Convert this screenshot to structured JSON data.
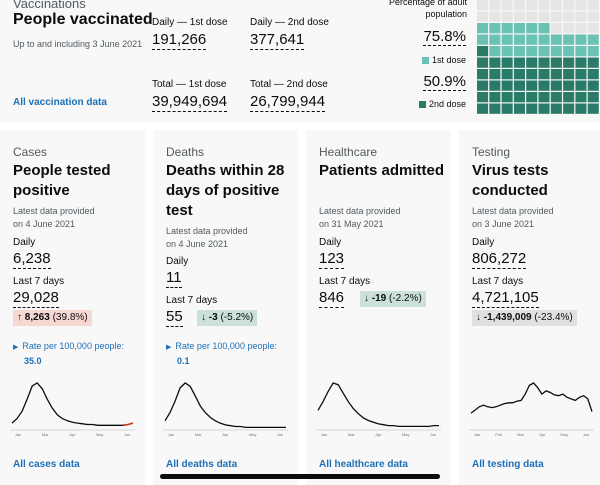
{
  "vaccinations": {
    "category": "Vaccinations",
    "title": "People vaccinated",
    "date": "Up to and including 3 June 2021",
    "daily_first_label": "Daily — 1st dose",
    "daily_first_value": "191,266",
    "daily_second_label": "Daily — 2nd dose",
    "daily_second_value": "377,641",
    "total_first_label": "Total — 1st dose",
    "total_first_value": "39,949,694",
    "total_second_label": "Total — 2nd dose",
    "total_second_value": "26,799,944",
    "link": "All vaccination data",
    "percentage_title": "Percentage of adult population",
    "first_dose_pct": "75.8%",
    "first_dose_legend": "1st dose",
    "second_dose_pct": "50.9%",
    "second_dose_legend": "2nd dose",
    "first_dose_fraction": 0.758,
    "second_dose_fraction": 0.509,
    "colors": {
      "first": "#6ac2b5",
      "second": "#2a7a68",
      "empty": "#e5e5e5"
    }
  },
  "cards": [
    {
      "category": "Cases",
      "title": "People tested positive",
      "provided_label": "Latest data provided",
      "provided_date": "on 4 June 2021",
      "daily_label": "Daily",
      "daily_value": "6,238",
      "week_label": "Last 7 days",
      "week_value": "29,028",
      "change_arrow": "↑",
      "change_value": "8,263",
      "change_pct": "(39.8%)",
      "rate_label": "Rate per 100,000 people:",
      "rate_value": "35.0",
      "link": "All cases data"
    },
    {
      "category": "Deaths",
      "title": "Deaths within 28 days of positive test",
      "provided_label": "Latest data provided",
      "provided_date": "on 4 June 2021",
      "daily_label": "Daily",
      "daily_value": "11",
      "week_label": "Last 7 days",
      "week_value": "55",
      "change_arrow": "↓",
      "change_value": "-3",
      "change_pct": "(-5.2%)",
      "rate_label": "Rate per 100,000 people:",
      "rate_value": "0.1",
      "link": "All deaths data"
    },
    {
      "category": "Healthcare",
      "title": "Patients admitted",
      "provided_label": "Latest data provided",
      "provided_date": "on 31 May 2021",
      "daily_label": "Daily",
      "daily_value": "123",
      "week_label": "Last 7 days",
      "week_value": "846",
      "change_arrow": "↓",
      "change_value": "-19",
      "change_pct": "(-2.2%)",
      "link": "All healthcare data"
    },
    {
      "category": "Testing",
      "title": "Virus tests conducted",
      "provided_label": "Latest data provided",
      "provided_date": "on 3 June 2021",
      "daily_label": "Daily",
      "daily_value": "806,272",
      "week_label": "Last 7 days",
      "week_value": "4,721,105",
      "change_arrow": "↓",
      "change_value": "-1,439,009",
      "change_pct": "(-23.4%)",
      "link": "All testing data"
    }
  ],
  "spark_axis": {
    "short": [
      "Jan",
      "Mar",
      "Apr",
      "May",
      "Jun"
    ],
    "testing": [
      "Jan",
      "Feb",
      "Mar",
      "Apr",
      "May",
      "Jun"
    ]
  },
  "sparklines": {
    "cases": [
      8,
      14,
      24,
      40,
      58,
      62,
      54,
      40,
      28,
      19,
      14,
      11,
      9,
      8,
      7,
      6,
      6,
      5,
      5,
      5,
      5,
      5,
      5,
      6,
      8
    ],
    "deaths": [
      10,
      20,
      34,
      50,
      56,
      52,
      40,
      28,
      20,
      14,
      10,
      7,
      5,
      4,
      3,
      3,
      2,
      2,
      2,
      2,
      2,
      2,
      2,
      2,
      2
    ],
    "healthcare": [
      22,
      32,
      44,
      54,
      52,
      42,
      32,
      24,
      18,
      13,
      10,
      8,
      6,
      5,
      4,
      4,
      3,
      3,
      3,
      3,
      3,
      3,
      3,
      4,
      4
    ],
    "testing": [
      20,
      24,
      28,
      30,
      28,
      27,
      28,
      30,
      32,
      33,
      33,
      35,
      36,
      44,
      55,
      58,
      52,
      44,
      48,
      46,
      43,
      42,
      44,
      40,
      38,
      36,
      40,
      42,
      38,
      22
    ]
  }
}
